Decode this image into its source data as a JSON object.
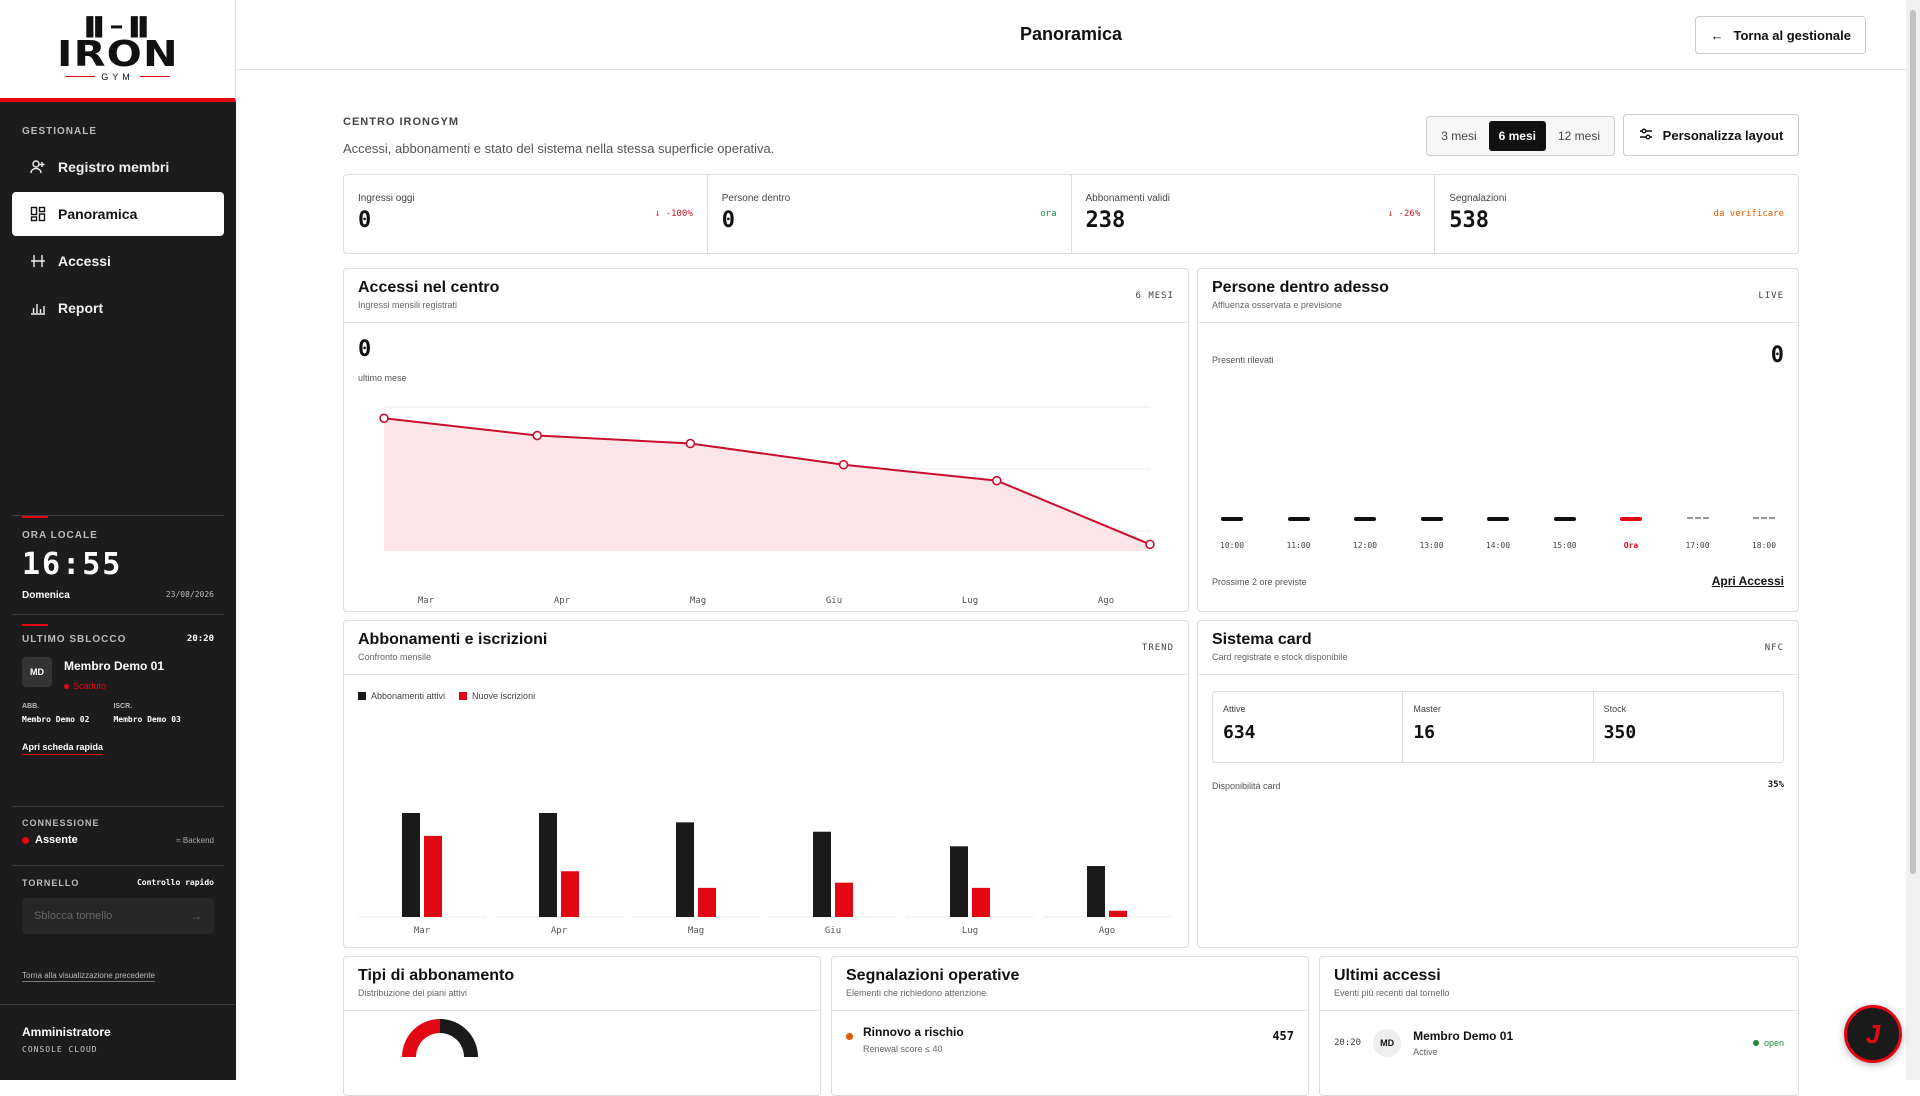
{
  "brand": {
    "mark": "▐▌━▐▌",
    "word": "IRON",
    "sub": "GYM"
  },
  "sidebar": {
    "section_label": "GESTIONALE",
    "nav": [
      {
        "label": "Registro membri",
        "icon": "user-plus-icon"
      },
      {
        "label": "Panoramica",
        "icon": "dashboard-icon"
      },
      {
        "label": "Accessi",
        "icon": "turnstile-icon"
      },
      {
        "label": "Report",
        "icon": "bar-chart-icon"
      }
    ],
    "clock": {
      "label": "ORA LOCALE",
      "hours": "16",
      "minutes": "55",
      "day": "Domenica",
      "date": "23/08/2026"
    },
    "last_unlock": {
      "label": "ULTIMO SBLOCCO",
      "time": "20:20",
      "avatar": "MD",
      "name": "Membro Demo 01",
      "status": "Scaduto",
      "abb_label": "ABB.",
      "abb_value": "Membro Demo 02",
      "iscr_label": "ISCR.",
      "iscr_value": "Membro Demo 03",
      "link": "Apri scheda rapida"
    },
    "connection": {
      "label": "CONNESSIONE",
      "status": "Assente",
      "backend": "Backend"
    },
    "turnstile": {
      "label": "TORNELLO",
      "right": "Controllo rapido",
      "placeholder": "Sblocca tornello"
    },
    "back_link": "Torna alla visualizzazione precedente",
    "user": {
      "name": "Amministratore",
      "role": "CONSOLE CLOUD"
    }
  },
  "topbar": {
    "title": "Panoramica",
    "back": "Torna al gestionale"
  },
  "header": {
    "centro": "CENTRO IRONGYM",
    "desc": "Accessi, abbonamenti e stato del sistema nella stessa superficie operativa.",
    "ranges": [
      "3 mesi",
      "6 mesi",
      "12 mesi"
    ],
    "range_selected": "6 mesi",
    "layout_btn": "Personalizza layout"
  },
  "kpis": [
    {
      "label": "Ingressi oggi",
      "value": "0",
      "delta": "↓ -100%",
      "color": "#d01c2c"
    },
    {
      "label": "Persone dentro",
      "value": "0",
      "delta": "ora",
      "color": "#1a8a3a"
    },
    {
      "label": "Abbonamenti validi",
      "value": "238",
      "delta": "↓ -26%",
      "color": "#d01c2c"
    },
    {
      "label": "Segnalazioni",
      "value": "538",
      "delta": "da verificare",
      "color": "#e05a00"
    }
  ],
  "accessi": {
    "title": "Accessi nel centro",
    "sub": "Ingressi mensili registrati",
    "tag": "6 MESI",
    "value": "0",
    "value_label": "ultimo mese"
  },
  "persone": {
    "title": "Persone dentro adesso",
    "sub": "Affluenza osservata e previsione",
    "tag": "LIVE",
    "label": "Presenti rilevati",
    "value": "0",
    "hours": [
      "10:00",
      "11:00",
      "12:00",
      "13:00",
      "14:00",
      "15:00",
      "Ora",
      "17:00",
      "18:00"
    ],
    "footer": "Prossime 2 ore previste",
    "link": "Apri Accessi"
  },
  "abbonamenti": {
    "title": "Abbonamenti e iscrizioni",
    "sub": "Confronto mensile",
    "tag": "TREND"
  },
  "card_system": {
    "title": "Sistema card",
    "sub": "Card registrate e stock disponibile",
    "tag": "NFC",
    "stats": [
      {
        "label": "Attive",
        "value": "634"
      },
      {
        "label": "Master",
        "value": "16"
      },
      {
        "label": "Stock",
        "value": "350"
      }
    ],
    "avail_label": "Disponibilità card",
    "avail_value": "35%"
  },
  "tipi": {
    "title": "Tipi di abbonamento",
    "sub": "Distribuzione dei piani attivi"
  },
  "segnalazioni": {
    "title": "Segnalazioni operative",
    "sub": "Elementi che richiedono attenzione",
    "item": {
      "title": "Rinnovo a rischio",
      "sub": "Renewal score ≤ 40",
      "value": "457"
    }
  },
  "ultimi": {
    "title": "Ultimi accessi",
    "sub": "Eventi più recenti dal tornello",
    "item": {
      "time": "20:20",
      "avatar": "MD",
      "name": "Membro Demo 01",
      "status": "Active",
      "state": "open"
    }
  },
  "fab": {
    "label": "J"
  },
  "chart_data": [
    {
      "type": "area",
      "categories": [
        "Mar",
        "Apr",
        "Mag",
        "Giu",
        "Lug",
        "Ago"
      ],
      "values": [
        100,
        87,
        81,
        65,
        53,
        5
      ],
      "ylim": [
        0,
        110
      ]
    },
    {
      "type": "bar",
      "categories": [
        "Mar",
        "Apr",
        "Mag",
        "Giu",
        "Lug",
        "Ago"
      ],
      "series": [
        {
          "name": "Abbonamenti attivi",
          "values": [
            100,
            100,
            91,
            82,
            68,
            49
          ],
          "color": "#1a1a1a"
        },
        {
          "name": "Nuove iscrizioni",
          "values": [
            78,
            44,
            28,
            33,
            28,
            6
          ],
          "color": "#e30613"
        }
      ],
      "ylim": [
        0,
        130
      ]
    }
  ]
}
